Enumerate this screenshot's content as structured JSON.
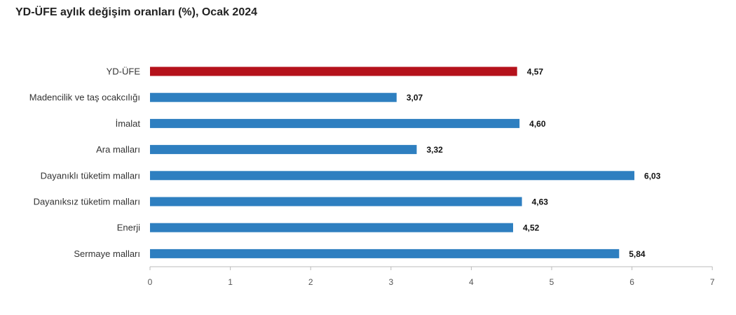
{
  "chart_data": {
    "type": "bar",
    "orientation": "horizontal",
    "title": "YD-ÜFE aylık değişim oranları (%), Ocak 2024",
    "categories": [
      "YD-ÜFE",
      "Madencilik ve taş ocakcılığı",
      "İmalat",
      "Ara malları",
      "Dayanıklı tüketim malları",
      "Dayanıksız tüketim malları",
      "Enerji",
      "Sermaye malları"
    ],
    "values": [
      4.57,
      3.07,
      4.6,
      3.32,
      6.03,
      4.63,
      4.52,
      5.84
    ],
    "value_labels": [
      "4,57",
      "3,07",
      "4,60",
      "3,32",
      "6,03",
      "4,63",
      "4,52",
      "5,84"
    ],
    "xlim": [
      0,
      7
    ],
    "xticks": [
      "0",
      "1",
      "2",
      "3",
      "4",
      "5",
      "6",
      "7"
    ],
    "grid": false,
    "legend": "none",
    "colors": {
      "highlight": "#b5121b",
      "bar": "#2e7fc0",
      "axis": "#bbbbbb"
    },
    "highlight_category": "YD-ÜFE"
  }
}
